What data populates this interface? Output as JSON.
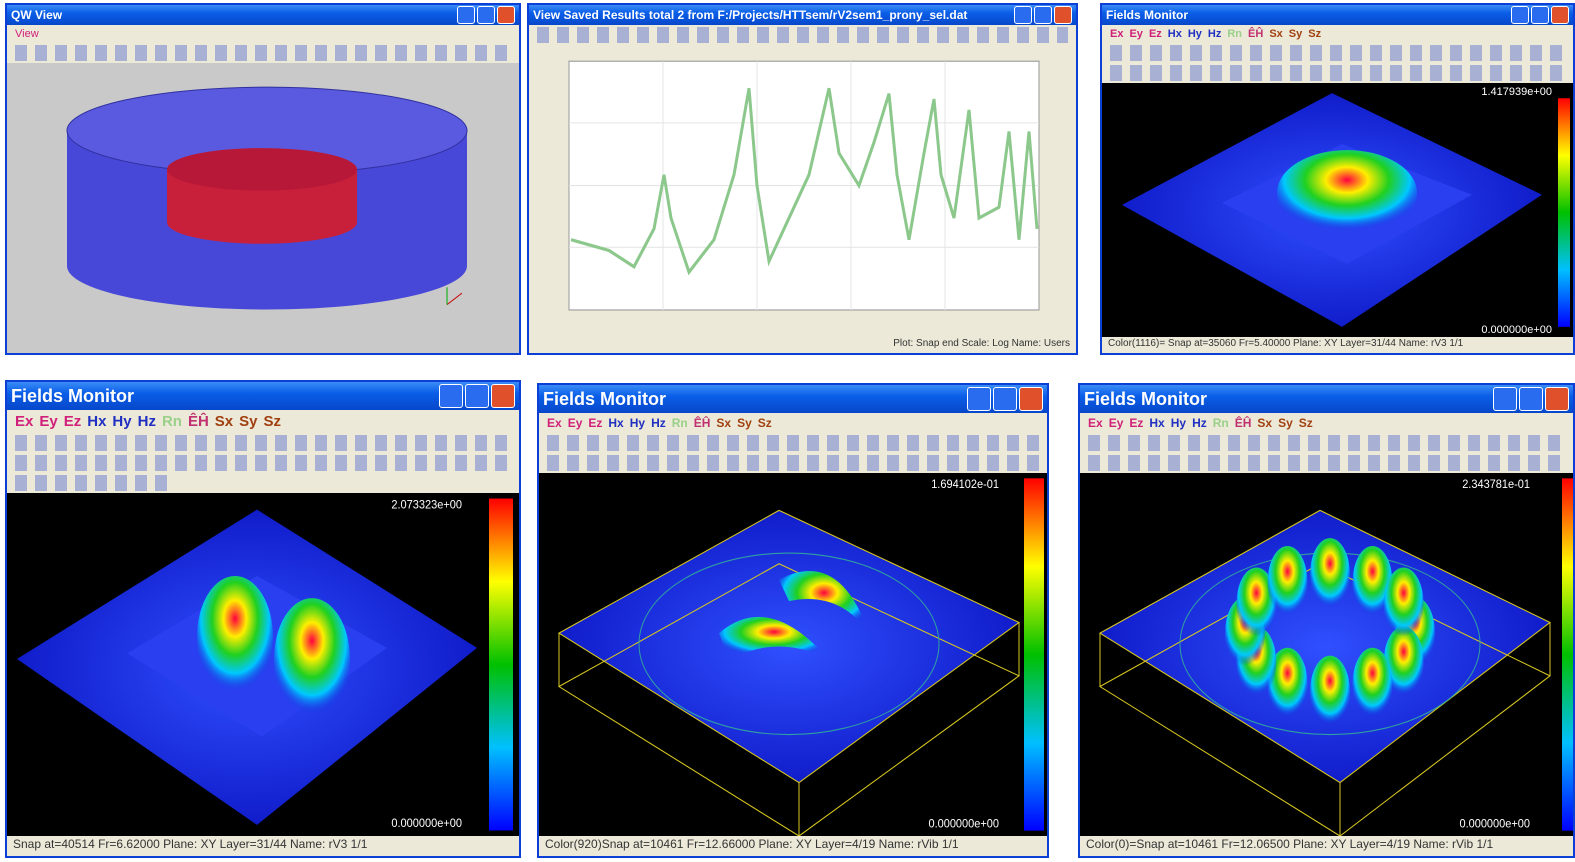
{
  "windows": [
    {
      "title": "QW View",
      "menu": "View"
    },
    {
      "title": "View Saved Results total 2 from F:/Projects/HTTsem/rV2sem1_prony_sel.dat",
      "status": "Plot: Snap end   Scale: Log  Name: Users"
    },
    {
      "title": "Fields Monitor",
      "toolbar": [
        "Ex",
        "Ey",
        "Ez",
        "Hx",
        "Hy",
        "Hz",
        "Rn",
        "ÊĤ",
        "Sx",
        "Sy",
        "Sz"
      ],
      "max": "1.417939e+00",
      "min": "0.000000e+00",
      "status": "Color(1116)= Snap at=35060 Fr=5.40000 Plane: XY Layer=31/44 Name: rV3 1/1"
    },
    {
      "title": "Fields Monitor",
      "toolbar": [
        "Ex",
        "Ey",
        "Ez",
        "Hx",
        "Hy",
        "Hz",
        "Rn",
        "ÊĤ",
        "Sx",
        "Sy",
        "Sz"
      ],
      "max": "2.073323e+00",
      "min": "0.000000e+00",
      "status": "Snap at=40514 Fr=6.62000 Plane: XY Layer=31/44 Name: rV3 1/1"
    },
    {
      "title": "Fields Monitor",
      "toolbar": [
        "Ex",
        "Ey",
        "Ez",
        "Hx",
        "Hy",
        "Hz",
        "Rn",
        "ÊĤ",
        "Sx",
        "Sy",
        "Sz"
      ],
      "max": "1.694102e-01",
      "min": "0.000000e+00",
      "status": "Color(920)Snap at=10461 Fr=12.66000 Plane: XY Layer=4/19 Name: rVib 1/1"
    },
    {
      "title": "Fields Monitor",
      "toolbar": [
        "Ex",
        "Ey",
        "Ez",
        "Hx",
        "Hy",
        "Hz",
        "Rn",
        "ÊĤ",
        "Sx",
        "Sy",
        "Sz"
      ],
      "max": "2.343781e-01",
      "min": "0.000000e+00",
      "status": "Color(0)=Snap at=10461 Fr=12.06500 Plane: XY Layer=4/19 Name: rVib 1/1"
    }
  ]
}
